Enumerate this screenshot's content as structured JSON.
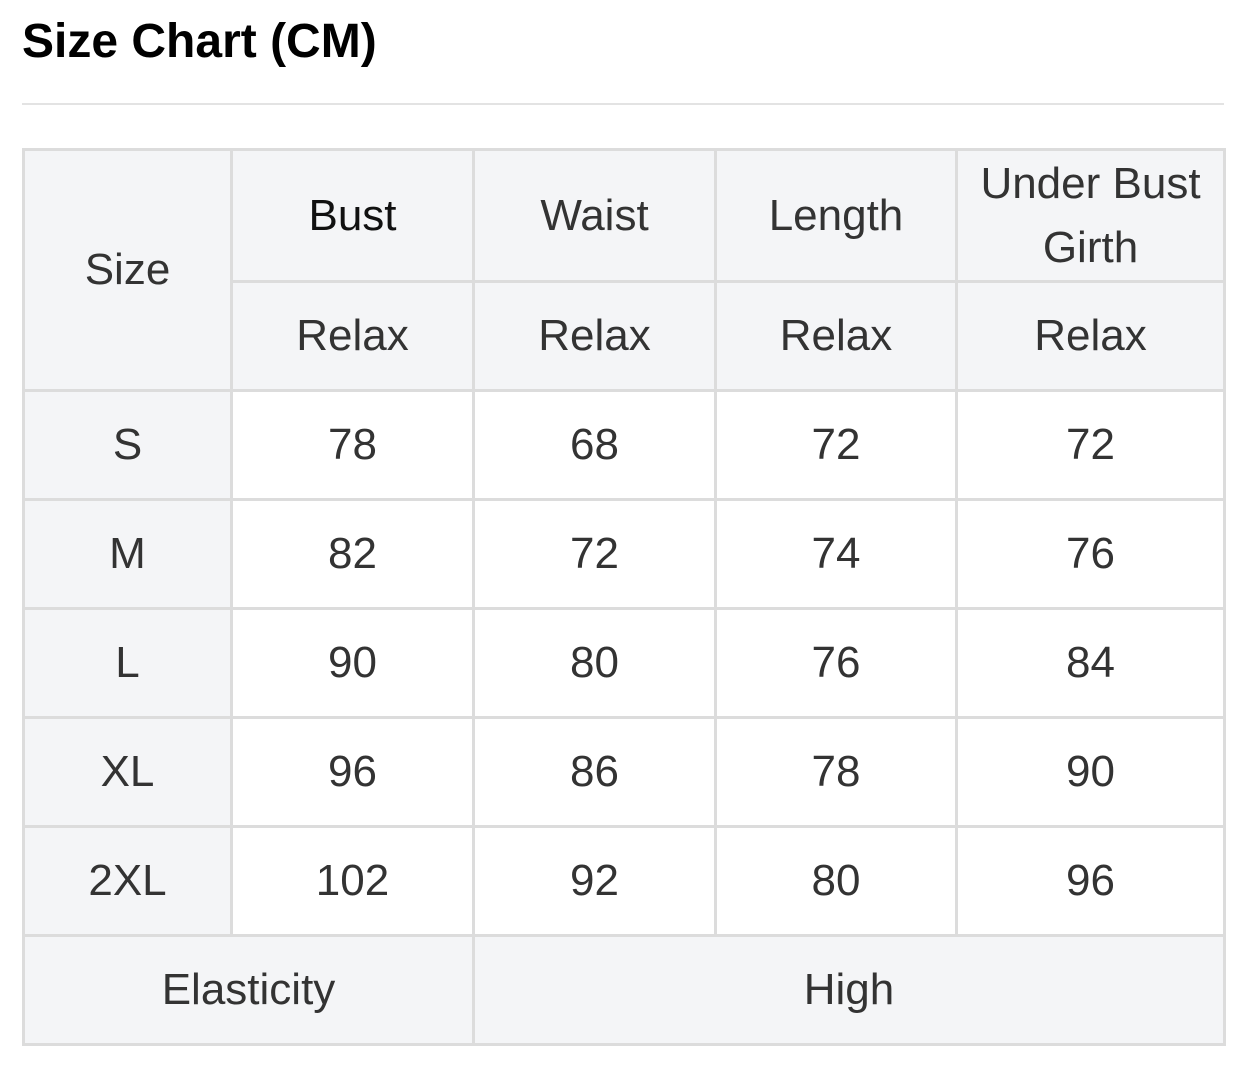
{
  "title": "Size Chart (CM)",
  "table": {
    "size_header": "Size",
    "columns": [
      "Bust",
      "Waist",
      "Length",
      "Under Bust Girth"
    ],
    "subheaders": [
      "Relax",
      "Relax",
      "Relax",
      "Relax"
    ],
    "rows": [
      {
        "size": "S",
        "values": [
          "78",
          "68",
          "72",
          "72"
        ]
      },
      {
        "size": "M",
        "values": [
          "82",
          "72",
          "74",
          "76"
        ]
      },
      {
        "size": "L",
        "values": [
          "90",
          "80",
          "76",
          "84"
        ]
      },
      {
        "size": "XL",
        "values": [
          "96",
          "86",
          "78",
          "90"
        ]
      },
      {
        "size": "2XL",
        "values": [
          "102",
          "92",
          "80",
          "96"
        ]
      }
    ],
    "footer": {
      "label": "Elasticity",
      "value": "High"
    }
  }
}
